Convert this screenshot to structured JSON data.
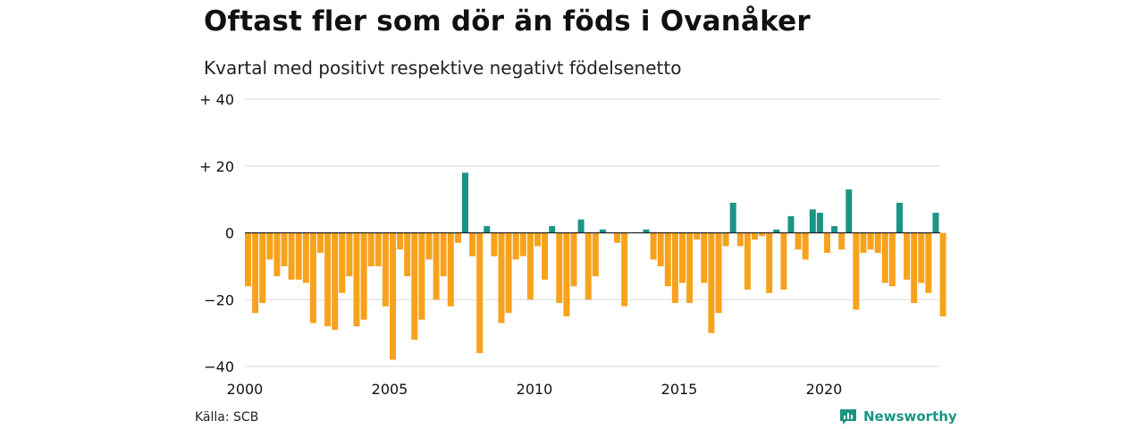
{
  "title": "Oftast fler som dör än föds i Ovanåker",
  "subtitle": "Kvartal med positivt respektive negativt födelsenetto",
  "source": "Källa: SCB",
  "brand": {
    "name": "Newsworthy",
    "icon": "newsworthy-logo-icon"
  },
  "colors": {
    "positive": "#1a9584",
    "negative": "#f7a21d",
    "grid": "#d9d9d9",
    "zero": "#222222"
  },
  "chart_data": {
    "type": "bar",
    "title": "Oftast fler som dör än föds i Ovanåker",
    "subtitle": "Kvartal med positivt respektive negativt födelsenetto",
    "x_start_year": 2000,
    "ylim": [
      -40,
      40
    ],
    "y_ticks": [
      {
        "value": 40,
        "label": "+ 40"
      },
      {
        "value": 20,
        "label": "+ 20"
      },
      {
        "value": 0,
        "label": "0"
      },
      {
        "value": -20,
        "label": "−20"
      },
      {
        "value": -40,
        "label": "−40"
      }
    ],
    "x_ticks": [
      {
        "year": 2000,
        "label": "2000"
      },
      {
        "year": 2005,
        "label": "2005"
      },
      {
        "year": 2010,
        "label": "2010"
      },
      {
        "year": 2015,
        "label": "2015"
      },
      {
        "year": 2020,
        "label": "2020"
      }
    ],
    "values": [
      -16,
      -24,
      -21,
      -8,
      -13,
      -10,
      -14,
      -14,
      -15,
      -27,
      -6,
      -28,
      -29,
      -18,
      -13,
      -28,
      -26,
      -10,
      -10,
      -22,
      -38,
      -5,
      -13,
      -32,
      -26,
      -8,
      -20,
      -13,
      -22,
      -3,
      18,
      -7,
      -36,
      2,
      -7,
      -27,
      -24,
      -8,
      -7,
      -20,
      -4,
      -14,
      2,
      -21,
      -25,
      -16,
      4,
      -20,
      -13,
      1,
      0,
      -3,
      -22,
      0,
      0,
      1,
      -8,
      -10,
      -16,
      -21,
      -15,
      -21,
      -2,
      -15,
      -30,
      -24,
      -4,
      9,
      -4,
      -17,
      -2,
      -1,
      -18,
      1,
      -17,
      5,
      -5,
      -8,
      7,
      6,
      -6,
      2,
      -5,
      13,
      -23,
      -6,
      -5,
      -6,
      -15,
      -16,
      9,
      -14,
      -21,
      -15,
      -18,
      6,
      -25
    ],
    "grid": true,
    "legend": "none"
  }
}
